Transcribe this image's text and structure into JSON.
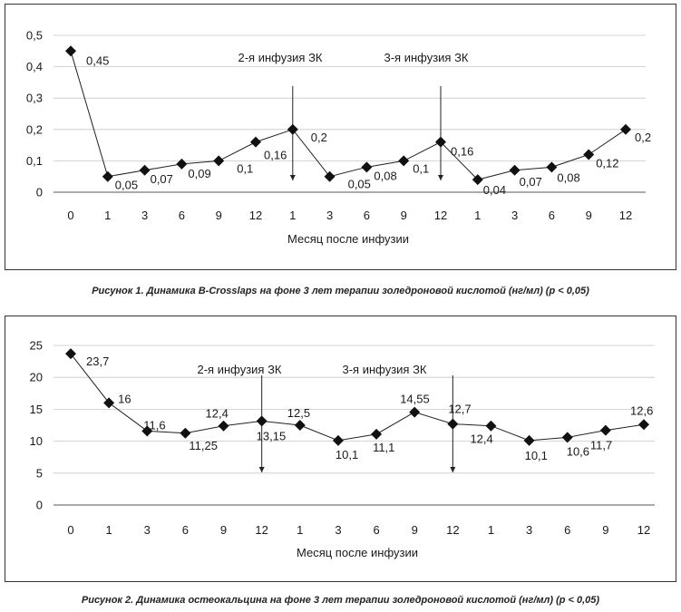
{
  "chart_data": [
    {
      "type": "line",
      "categories": [
        "0",
        "1",
        "3",
        "6",
        "9",
        "12",
        "1",
        "3",
        "6",
        "9",
        "12",
        "1",
        "3",
        "6",
        "9",
        "12"
      ],
      "values": [
        0.45,
        0.05,
        0.07,
        0.09,
        0.1,
        0.16,
        0.2,
        0.05,
        0.08,
        0.1,
        0.16,
        0.04,
        0.07,
        0.08,
        0.12,
        0.2
      ],
      "data_labels": [
        "0,45",
        "0,05",
        "0,07",
        "0,09",
        "0,1",
        "0,16",
        "0,2",
        "0,05",
        "0,08",
        "0,1",
        "0,16",
        "0,04",
        "0,07",
        "0,08",
        "0,12",
        "0,2"
      ],
      "title": "",
      "xlabel": "Месяц после инфузии",
      "ylabel": "",
      "ylim": [
        0,
        0.5
      ],
      "yticks": [
        0,
        0.1,
        0.2,
        0.3,
        0.4,
        0.5
      ],
      "ytick_labels": [
        "0",
        "0,1",
        "0,2",
        "0,3",
        "0,4",
        "0,5"
      ],
      "grid": true,
      "marker": "diamond",
      "annotations": [
        {
          "text": "2-я инфузия ЗК",
          "category_index": 6
        },
        {
          "text": "3-я инфузия ЗК",
          "category_index": 10
        }
      ],
      "caption": "Рисунок 1. Динамика B-Crosslaps на фоне 3 лет терапии золедроновой кислотой (нг/мл) (p < 0,05)"
    },
    {
      "type": "line",
      "categories": [
        "0",
        "1",
        "3",
        "6",
        "9",
        "12",
        "1",
        "3",
        "6",
        "9",
        "12",
        "1",
        "3",
        "6",
        "9",
        "12"
      ],
      "values": [
        23.7,
        16,
        11.6,
        11.25,
        12.4,
        13.15,
        12.5,
        10.1,
        11.1,
        14.55,
        12.7,
        12.4,
        10.1,
        10.6,
        11.7,
        12.6
      ],
      "data_labels": [
        "23,7",
        "16",
        "11,6",
        "11,25",
        "12,4",
        "13,15",
        "12,5",
        "10,1",
        "11,1",
        "14,55",
        "12,7",
        "12,4",
        "10,1",
        "10,6",
        "11,7",
        "12,6"
      ],
      "title": "",
      "xlabel": "Месяц после инфузии",
      "ylabel": "",
      "ylim": [
        0,
        25
      ],
      "yticks": [
        0,
        5,
        10,
        15,
        20,
        25
      ],
      "ytick_labels": [
        "0",
        "5",
        "10",
        "15",
        "20",
        "25"
      ],
      "grid": true,
      "marker": "diamond",
      "annotations": [
        {
          "text": "2-я инфузия ЗК",
          "category_index": 5
        },
        {
          "text": "3-я инфузия ЗК",
          "category_index": 10
        }
      ],
      "caption": "Рисунок 2. Динамика остеокальцина на фоне 3 лет терапии золедроновой кислотой (нг/мл) (p < 0,05)"
    }
  ]
}
